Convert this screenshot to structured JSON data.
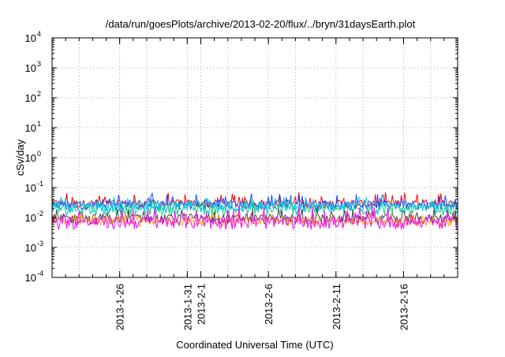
{
  "chart_data": {
    "type": "line",
    "title": "/data/run/goesPlots/archive/2013-02-20/flux/../bryn/31daysEarth.plot",
    "xlabel": "Coordinated Universal Time (UTC)",
    "ylabel": "cSv/day",
    "yscale": "log",
    "ylim": [
      0.0001,
      10000
    ],
    "y_ticks": [
      {
        "base": "10",
        "exp": "-4",
        "value": 0.0001
      },
      {
        "base": "10",
        "exp": "-3",
        "value": 0.001
      },
      {
        "base": "10",
        "exp": "-2",
        "value": 0.01
      },
      {
        "base": "10",
        "exp": "-1",
        "value": 0.1
      },
      {
        "base": "10",
        "exp": "0",
        "value": 1
      },
      {
        "base": "10",
        "exp": "1",
        "value": 10
      },
      {
        "base": "10",
        "exp": "2",
        "value": 100
      },
      {
        "base": "10",
        "exp": "3",
        "value": 1000
      },
      {
        "base": "10",
        "exp": "4",
        "value": 10000
      }
    ],
    "xlim": [
      "2013-01-21",
      "2013-02-20"
    ],
    "x_ticks": [
      "2013-1-26",
      "2013-1-31",
      "2013-2-1",
      "2013-2-6",
      "2013-2-11",
      "2013-2-16"
    ],
    "x_tick_dates": [
      "2013-01-26",
      "2013-01-31",
      "2013-02-01",
      "2013-02-06",
      "2013-02-11",
      "2013-02-16"
    ],
    "grid": true,
    "series": [
      {
        "color": "#ff0000",
        "base": 0.03,
        "low": 0.02,
        "high": 0.07
      },
      {
        "color": "#2244ff",
        "base": 0.028,
        "low": 0.018,
        "high": 0.065
      },
      {
        "color": "#00cc88",
        "base": 0.02,
        "low": 0.012,
        "high": 0.04
      },
      {
        "color": "#00ccff",
        "base": 0.025,
        "low": 0.015,
        "high": 0.05
      },
      {
        "color": "#444444",
        "base": 0.01,
        "low": 0.006,
        "high": 0.02
      },
      {
        "color": "#ffaa00",
        "base": 0.008,
        "low": 0.005,
        "high": 0.015
      },
      {
        "color": "#ff00ff",
        "base": 0.008,
        "low": 0.004,
        "high": 0.025
      }
    ]
  }
}
